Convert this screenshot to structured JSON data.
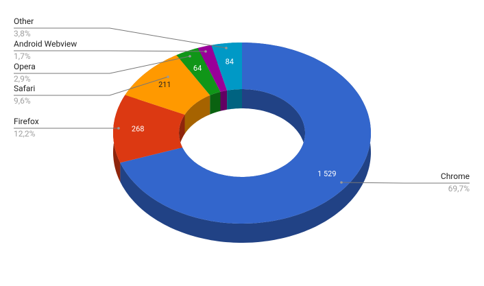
{
  "chart_data": {
    "type": "pie",
    "donut": true,
    "three_d": true,
    "categories": [
      "Chrome",
      "Firefox",
      "Safari",
      "Opera",
      "Android Webview",
      "Other"
    ],
    "values": [
      1529,
      268,
      211,
      64,
      38,
      84
    ],
    "value_labels": [
      "1 529",
      "268",
      "211",
      "64",
      null,
      "84"
    ],
    "percents": [
      69.7,
      12.2,
      9.6,
      2.9,
      1.7,
      3.8
    ],
    "percent_labels": [
      "69,7%",
      "12,2%",
      "9,6%",
      "2,9%",
      "1,7%",
      "3,8%"
    ],
    "colors": [
      "#3366cc",
      "#dc3912",
      "#ff9900",
      "#109618",
      "#990099",
      "#0099c6"
    ]
  }
}
